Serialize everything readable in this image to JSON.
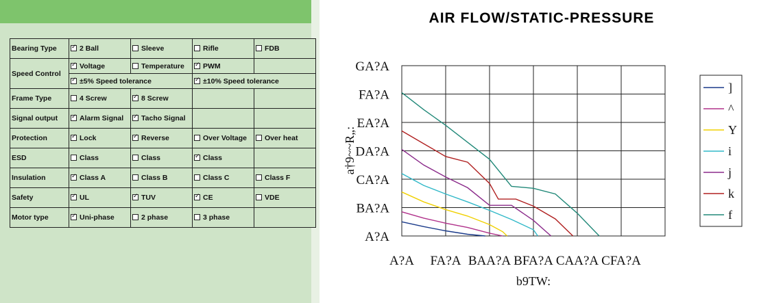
{
  "spec_table": {
    "rows": [
      {
        "label": "Bearing Type",
        "cells": [
          {
            "text": "2 Ball",
            "checked": true
          },
          {
            "text": "Sleeve",
            "checked": false
          },
          {
            "text": "Rifle",
            "checked": false
          },
          {
            "text": "FDB",
            "checked": false
          }
        ]
      },
      {
        "label": "Speed Control",
        "cells": [
          {
            "text": "Voltage",
            "checked": true
          },
          {
            "text": "Temperature",
            "checked": false
          },
          {
            "text": "PWM",
            "checked": true
          },
          {
            "text": "",
            "checked": null
          }
        ],
        "sub": [
          {
            "text": "±5% Speed tolerance",
            "checked": true
          },
          {
            "text": "±10% Speed tolerance",
            "checked": true
          }
        ]
      },
      {
        "label": "Frame Type",
        "cells": [
          {
            "text": "4 Screw",
            "checked": false
          },
          {
            "text": "8 Screw",
            "checked": true
          },
          {
            "text": "",
            "checked": null
          },
          {
            "text": "",
            "checked": null
          }
        ]
      },
      {
        "label": "Signal output",
        "cells": [
          {
            "text": "Alarm Signal",
            "checked": true
          },
          {
            "text": "Tacho Signal",
            "checked": true
          },
          {
            "text": "",
            "checked": null
          },
          {
            "text": "",
            "checked": null
          }
        ]
      },
      {
        "label": "Protection",
        "cells": [
          {
            "text": "Lock",
            "checked": true
          },
          {
            "text": "Reverse",
            "checked": true
          },
          {
            "text": "Over Voltage",
            "checked": false
          },
          {
            "text": "Over heat",
            "checked": false
          }
        ]
      },
      {
        "label": "ESD",
        "cells": [
          {
            "text": "Class",
            "checked": false
          },
          {
            "text": "Class",
            "checked": false
          },
          {
            "text": "Class",
            "checked": true
          },
          {
            "text": "",
            "checked": null
          }
        ]
      },
      {
        "label": "Insulation",
        "cells": [
          {
            "text": "Class A",
            "checked": true
          },
          {
            "text": "Class B",
            "checked": false
          },
          {
            "text": "Class C",
            "checked": false
          },
          {
            "text": "Class F",
            "checked": false
          }
        ]
      },
      {
        "label": "Safety",
        "cells": [
          {
            "text": "UL",
            "checked": true
          },
          {
            "text": "TUV",
            "checked": true
          },
          {
            "text": "CE",
            "checked": true
          },
          {
            "text": "VDE",
            "checked": false
          }
        ]
      },
      {
        "label": "Motor type",
        "cells": [
          {
            "text": "Uni-phase",
            "checked": true
          },
          {
            "text": "2 phase",
            "checked": false
          },
          {
            "text": "3 phase",
            "checked": false
          },
          {
            "text": "",
            "checked": null
          }
        ]
      }
    ]
  },
  "chart_data": {
    "type": "line",
    "title": "AIR FLOW/STATIC-PRESSURE",
    "xlabel": "b9TW:",
    "ylabel": "a†9~~R„:",
    "x_tick_labels": [
      "A?A",
      "FA?A",
      "BAA?A",
      "BFA?A",
      "CAA?A",
      "CFA?A"
    ],
    "y_tick_labels": [
      "A?A",
      "BA?A",
      "CA?A",
      "DA?A",
      "EA?A",
      "FA?A",
      "GA?A"
    ],
    "xlim": [
      0,
      6
    ],
    "ylim": [
      0,
      6
    ],
    "grid": true,
    "legend_position": "right",
    "series": [
      {
        "name": "]",
        "color": "#1a3a8a",
        "x": [
          0,
          0.5,
          1.0,
          1.5,
          1.9
        ],
        "y": [
          0.5,
          0.33,
          0.18,
          0.06,
          0
        ]
      },
      {
        "name": "^",
        "color": "#b0308a",
        "x": [
          0,
          0.5,
          1.0,
          1.5,
          2.0,
          2.3
        ],
        "y": [
          0.85,
          0.63,
          0.45,
          0.3,
          0.1,
          0
        ]
      },
      {
        "name": "Y",
        "color": "#f0d000",
        "x": [
          0,
          0.5,
          1.0,
          1.5,
          2.0,
          2.3,
          2.4
        ],
        "y": [
          1.55,
          1.2,
          0.93,
          0.7,
          0.4,
          0.15,
          0
        ]
      },
      {
        "name": "i",
        "color": "#30b8c8",
        "x": [
          0,
          0.5,
          1.0,
          1.5,
          2.0,
          2.5,
          3.0,
          3.1
        ],
        "y": [
          2.2,
          1.78,
          1.48,
          1.2,
          0.9,
          0.58,
          0.22,
          0
        ]
      },
      {
        "name": "j",
        "color": "#8a2a8a",
        "x": [
          0,
          0.5,
          1.0,
          1.5,
          2.0,
          2.5,
          3.0,
          3.4
        ],
        "y": [
          3.05,
          2.5,
          2.08,
          1.7,
          1.08,
          1.08,
          0.55,
          0
        ]
      },
      {
        "name": "k",
        "color": "#b02020",
        "x": [
          0,
          0.5,
          1.0,
          1.5,
          2.0,
          2.2,
          2.6,
          3.0,
          3.5,
          3.9
        ],
        "y": [
          3.7,
          3.25,
          2.8,
          2.6,
          1.85,
          1.3,
          1.3,
          1.05,
          0.6,
          0
        ]
      },
      {
        "name": "f",
        "color": "#208878",
        "x": [
          0,
          0.5,
          1.0,
          1.5,
          2.0,
          2.5,
          3.0,
          3.5,
          4.0,
          4.5
        ],
        "y": [
          5.05,
          4.45,
          3.9,
          3.3,
          2.7,
          1.75,
          1.68,
          1.48,
          0.8,
          0
        ]
      }
    ]
  }
}
